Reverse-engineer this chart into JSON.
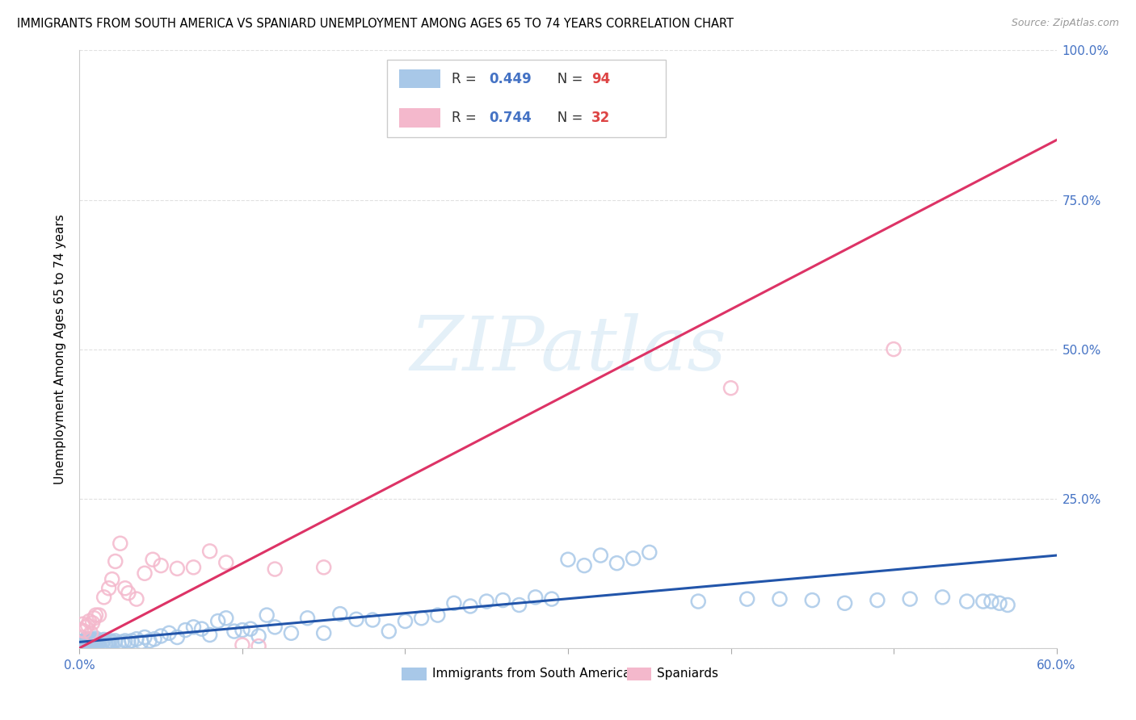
{
  "title": "IMMIGRANTS FROM SOUTH AMERICA VS SPANIARD UNEMPLOYMENT AMONG AGES 65 TO 74 YEARS CORRELATION CHART",
  "source": "Source: ZipAtlas.com",
  "ylabel": "Unemployment Among Ages 65 to 74 years",
  "xlim": [
    0.0,
    0.6
  ],
  "ylim": [
    0.0,
    1.0
  ],
  "blue_color": "#a8c8e8",
  "blue_edge_color": "#7aaed4",
  "pink_color": "#f4b8cc",
  "pink_edge_color": "#e8809c",
  "blue_line_color": "#2255aa",
  "pink_line_color": "#dd3366",
  "legend_r_blue": "0.449",
  "legend_n_blue": "94",
  "legend_r_pink": "0.744",
  "legend_n_pink": "32",
  "watermark": "ZIPatlas",
  "background_color": "#ffffff",
  "grid_color": "#dddddd",
  "tick_color": "#4472c4",
  "blue_x": [
    0.001,
    0.002,
    0.003,
    0.003,
    0.004,
    0.004,
    0.005,
    0.005,
    0.006,
    0.006,
    0.007,
    0.007,
    0.008,
    0.008,
    0.009,
    0.009,
    0.01,
    0.01,
    0.011,
    0.012,
    0.013,
    0.014,
    0.015,
    0.016,
    0.017,
    0.018,
    0.019,
    0.02,
    0.022,
    0.024,
    0.026,
    0.028,
    0.03,
    0.032,
    0.035,
    0.038,
    0.04,
    0.043,
    0.046,
    0.05,
    0.055,
    0.06,
    0.065,
    0.07,
    0.075,
    0.08,
    0.085,
    0.09,
    0.095,
    0.1,
    0.105,
    0.11,
    0.115,
    0.12,
    0.13,
    0.14,
    0.15,
    0.16,
    0.17,
    0.18,
    0.19,
    0.2,
    0.21,
    0.22,
    0.23,
    0.24,
    0.25,
    0.26,
    0.27,
    0.28,
    0.29,
    0.3,
    0.31,
    0.32,
    0.33,
    0.34,
    0.35,
    0.38,
    0.41,
    0.43,
    0.45,
    0.47,
    0.49,
    0.51,
    0.53,
    0.545,
    0.555,
    0.56,
    0.565,
    0.57,
    0.003,
    0.005,
    0.007,
    0.01
  ],
  "blue_y": [
    0.008,
    0.01,
    0.006,
    0.012,
    0.008,
    0.015,
    0.005,
    0.01,
    0.008,
    0.012,
    0.01,
    0.015,
    0.006,
    0.012,
    0.008,
    0.014,
    0.01,
    0.016,
    0.008,
    0.01,
    0.012,
    0.008,
    0.014,
    0.006,
    0.008,
    0.01,
    0.012,
    0.01,
    0.012,
    0.008,
    0.01,
    0.012,
    0.01,
    0.012,
    0.015,
    0.01,
    0.018,
    0.012,
    0.015,
    0.02,
    0.025,
    0.018,
    0.03,
    0.035,
    0.032,
    0.022,
    0.045,
    0.05,
    0.028,
    0.03,
    0.032,
    0.02,
    0.055,
    0.035,
    0.025,
    0.05,
    0.025,
    0.057,
    0.048,
    0.047,
    0.028,
    0.045,
    0.05,
    0.055,
    0.075,
    0.07,
    0.078,
    0.08,
    0.072,
    0.085,
    0.082,
    0.148,
    0.138,
    0.155,
    0.142,
    0.15,
    0.16,
    0.078,
    0.082,
    0.082,
    0.08,
    0.075,
    0.08,
    0.082,
    0.085,
    0.078,
    0.078,
    0.078,
    0.075,
    0.072,
    0.01,
    0.015,
    0.008,
    0.012
  ],
  "pink_x": [
    0.001,
    0.002,
    0.003,
    0.004,
    0.005,
    0.006,
    0.007,
    0.008,
    0.009,
    0.01,
    0.012,
    0.015,
    0.018,
    0.02,
    0.022,
    0.025,
    0.028,
    0.03,
    0.035,
    0.04,
    0.045,
    0.05,
    0.06,
    0.07,
    0.08,
    0.09,
    0.1,
    0.11,
    0.12,
    0.15,
    0.4,
    0.5
  ],
  "pink_y": [
    0.03,
    0.04,
    0.028,
    0.035,
    0.038,
    0.045,
    0.025,
    0.042,
    0.05,
    0.055,
    0.055,
    0.085,
    0.1,
    0.115,
    0.145,
    0.175,
    0.1,
    0.092,
    0.082,
    0.125,
    0.148,
    0.138,
    0.133,
    0.135,
    0.162,
    0.143,
    0.005,
    0.003,
    0.132,
    0.135,
    0.435,
    0.5
  ],
  "blue_trend_x0": 0.0,
  "blue_trend_y0": 0.01,
  "blue_trend_x1": 0.6,
  "blue_trend_y1": 0.155,
  "pink_trend_x0": 0.0,
  "pink_trend_y0": 0.0,
  "pink_trend_x1": 0.6,
  "pink_trend_y1": 0.85
}
